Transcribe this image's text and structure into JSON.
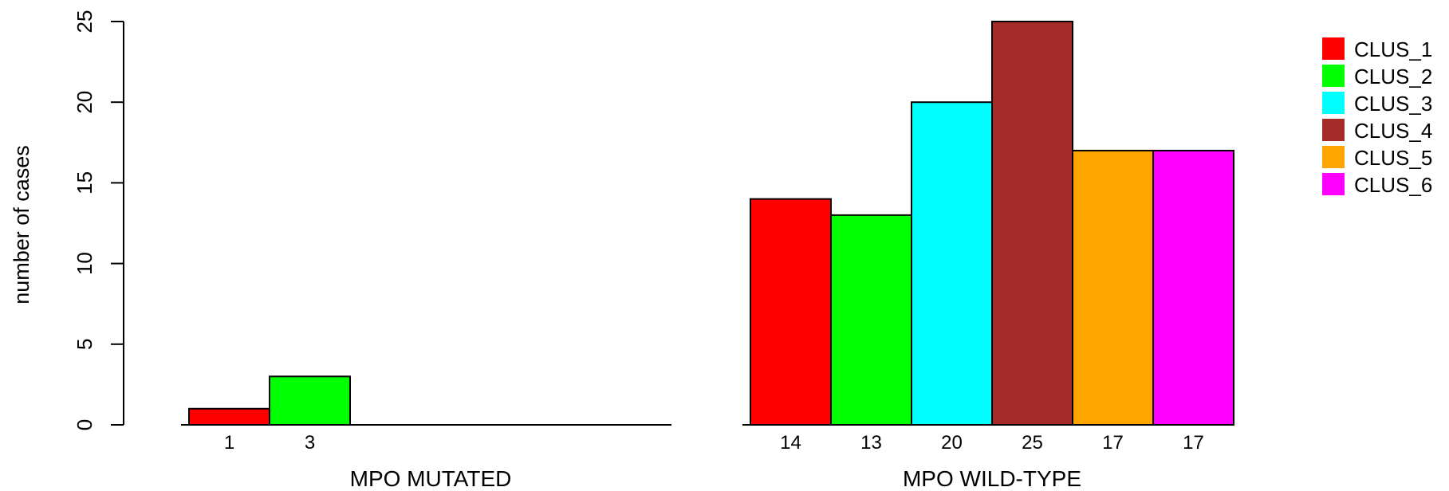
{
  "chart_data": {
    "type": "bar",
    "ylabel": "number of cases",
    "ylim": [
      0,
      25
    ],
    "yticks": [
      0,
      5,
      10,
      15,
      20,
      25
    ],
    "groups": [
      {
        "label": "MPO MUTATED",
        "values": [
          1,
          3,
          0,
          0,
          0,
          0
        ],
        "value_labels": [
          "1",
          "3",
          "",
          "",
          "",
          ""
        ]
      },
      {
        "label": "MPO WILD-TYPE",
        "values": [
          14,
          13,
          20,
          25,
          17,
          17
        ],
        "value_labels": [
          "14",
          "13",
          "20",
          "25",
          "17",
          "17"
        ]
      }
    ],
    "series": [
      {
        "name": "CLUS_1",
        "color": "#ff0000"
      },
      {
        "name": "CLUS_2",
        "color": "#00ff00"
      },
      {
        "name": "CLUS_3",
        "color": "#00ffff"
      },
      {
        "name": "CLUS_4",
        "color": "#a52a2a"
      },
      {
        "name": "CLUS_5",
        "color": "#ffa500"
      },
      {
        "name": "CLUS_6",
        "color": "#ff00ff"
      }
    ],
    "legend_position": "top-right",
    "grid": false
  }
}
